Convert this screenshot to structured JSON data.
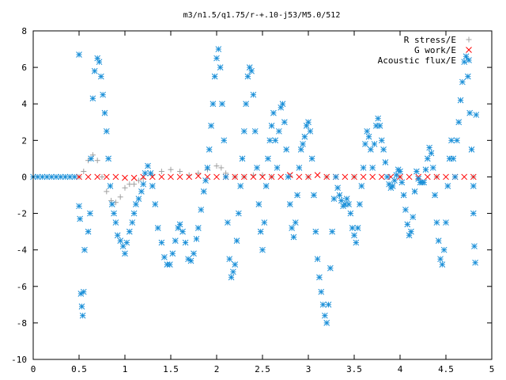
{
  "chart_data": {
    "type": "scatter",
    "title": "m3/n1.5/q1.75/r-+.10-j53/M5.0/512",
    "xlabel": "",
    "ylabel": "",
    "xlim": [
      0,
      5
    ],
    "ylim": [
      -10,
      8
    ],
    "xticks": [
      "0",
      "0.5",
      "1",
      "1.5",
      "2",
      "2.5",
      "3",
      "3.5",
      "4",
      "4.5",
      "5"
    ],
    "yticks": [
      "8",
      "6",
      "4",
      "2",
      "0",
      "-2",
      "-4",
      "-6",
      "-8",
      "-10"
    ],
    "grid": false,
    "legend_position": "top-right",
    "series": [
      {
        "name": "R stress/E",
        "marker": "plus",
        "color": "#a0a0a0",
        "points": [
          [
            0.5,
            0.0
          ],
          [
            0.55,
            0.3
          ],
          [
            0.6,
            0.9
          ],
          [
            0.65,
            1.2
          ],
          [
            0.7,
            0.9
          ],
          [
            0.75,
            0.0
          ],
          [
            0.8,
            -0.8
          ],
          [
            0.85,
            -1.3
          ],
          [
            0.9,
            -1.4
          ],
          [
            0.95,
            -1.1
          ],
          [
            1.0,
            -0.6
          ],
          [
            1.05,
            -0.4
          ],
          [
            1.1,
            -0.4
          ],
          [
            1.15,
            -0.2
          ],
          [
            1.2,
            -0.1
          ],
          [
            1.3,
            0.1
          ],
          [
            1.4,
            0.3
          ],
          [
            1.5,
            0.4
          ],
          [
            1.6,
            0.3
          ],
          [
            1.7,
            0.1
          ],
          [
            1.8,
            0.2
          ],
          [
            1.9,
            0.4
          ],
          [
            2.0,
            0.6
          ],
          [
            2.05,
            0.5
          ],
          [
            2.1,
            0.2
          ],
          [
            2.2,
            0.0
          ],
          [
            2.3,
            0.0
          ],
          [
            2.4,
            0.1
          ],
          [
            2.5,
            0.1
          ],
          [
            2.6,
            0.0
          ],
          [
            2.8,
            0.05
          ],
          [
            3.0,
            0.0
          ],
          [
            3.2,
            0.0
          ],
          [
            3.5,
            0.0
          ],
          [
            4.0,
            0.0
          ],
          [
            4.4,
            0.0
          ],
          [
            4.8,
            0.0
          ]
        ]
      },
      {
        "name": "G work/E",
        "marker": "cross",
        "color": "#ff0000",
        "points": [
          [
            0.5,
            0.0
          ],
          [
            0.6,
            0.0
          ],
          [
            0.7,
            0.0
          ],
          [
            0.8,
            0.0
          ],
          [
            0.9,
            0.0
          ],
          [
            1.0,
            -0.05
          ],
          [
            1.1,
            -0.05
          ],
          [
            1.2,
            0.0
          ],
          [
            1.3,
            0.0
          ],
          [
            1.4,
            0.0
          ],
          [
            1.5,
            0.0
          ],
          [
            1.6,
            0.0
          ],
          [
            1.7,
            0.0
          ],
          [
            1.8,
            0.05
          ],
          [
            1.9,
            0.0
          ],
          [
            2.0,
            0.0
          ],
          [
            2.1,
            0.0
          ],
          [
            2.2,
            0.0
          ],
          [
            2.3,
            0.0
          ],
          [
            2.4,
            0.0
          ],
          [
            2.5,
            0.0
          ],
          [
            2.6,
            0.0
          ],
          [
            2.7,
            0.0
          ],
          [
            2.8,
            0.1
          ],
          [
            2.9,
            0.0
          ],
          [
            3.0,
            0.0
          ],
          [
            3.1,
            0.1
          ],
          [
            3.2,
            0.0
          ],
          [
            3.3,
            0.0
          ],
          [
            3.4,
            0.0
          ],
          [
            3.5,
            0.0
          ],
          [
            3.6,
            0.0
          ],
          [
            3.7,
            0.0
          ],
          [
            3.8,
            0.0
          ],
          [
            3.9,
            0.0
          ],
          [
            4.0,
            0.0
          ],
          [
            4.1,
            0.0
          ],
          [
            4.2,
            0.0
          ],
          [
            4.3,
            0.0
          ],
          [
            4.4,
            0.0
          ],
          [
            4.5,
            0.0
          ],
          [
            4.6,
            0.0
          ],
          [
            4.7,
            0.0
          ],
          [
            4.8,
            0.0
          ]
        ]
      },
      {
        "name": "Acoustic flux/E",
        "marker": "star",
        "color": "#1a8fd8",
        "points": [
          [
            0.0,
            0.0
          ],
          [
            0.05,
            0.0
          ],
          [
            0.1,
            0.0
          ],
          [
            0.15,
            0.0
          ],
          [
            0.2,
            0.0
          ],
          [
            0.25,
            0.0
          ],
          [
            0.3,
            0.0
          ],
          [
            0.35,
            0.0
          ],
          [
            0.4,
            0.0
          ],
          [
            0.45,
            0.0
          ],
          [
            0.5,
            6.7
          ],
          [
            0.5,
            -1.6
          ],
          [
            0.51,
            -2.3
          ],
          [
            0.52,
            -6.4
          ],
          [
            0.53,
            -7.1
          ],
          [
            0.54,
            -7.6
          ],
          [
            0.55,
            -6.3
          ],
          [
            0.56,
            -4.0
          ],
          [
            0.6,
            -3.0
          ],
          [
            0.62,
            -2.0
          ],
          [
            0.63,
            1.0
          ],
          [
            0.65,
            4.3
          ],
          [
            0.67,
            5.8
          ],
          [
            0.7,
            6.5
          ],
          [
            0.72,
            6.3
          ],
          [
            0.74,
            5.5
          ],
          [
            0.76,
            4.5
          ],
          [
            0.78,
            3.5
          ],
          [
            0.8,
            2.5
          ],
          [
            0.82,
            1.0
          ],
          [
            0.84,
            -0.5
          ],
          [
            0.86,
            -1.5
          ],
          [
            0.88,
            -2.0
          ],
          [
            0.9,
            -2.5
          ],
          [
            0.92,
            -3.2
          ],
          [
            0.95,
            -3.5
          ],
          [
            0.98,
            -3.8
          ],
          [
            1.0,
            -4.2
          ],
          [
            1.02,
            -3.6
          ],
          [
            1.05,
            -3.0
          ],
          [
            1.08,
            -2.5
          ],
          [
            1.1,
            -2.0
          ],
          [
            1.12,
            -1.5
          ],
          [
            1.15,
            -1.2
          ],
          [
            1.18,
            -0.8
          ],
          [
            1.2,
            -0.4
          ],
          [
            1.22,
            0.2
          ],
          [
            1.25,
            0.6
          ],
          [
            1.28,
            0.2
          ],
          [
            1.3,
            -0.5
          ],
          [
            1.33,
            -1.5
          ],
          [
            1.36,
            -2.8
          ],
          [
            1.4,
            -3.6
          ],
          [
            1.43,
            -4.4
          ],
          [
            1.46,
            -4.8
          ],
          [
            1.49,
            -4.8
          ],
          [
            1.52,
            -4.2
          ],
          [
            1.55,
            -3.5
          ],
          [
            1.58,
            -2.8
          ],
          [
            1.6,
            -2.6
          ],
          [
            1.63,
            -3.0
          ],
          [
            1.66,
            -3.6
          ],
          [
            1.69,
            -4.5
          ],
          [
            1.72,
            -4.6
          ],
          [
            1.75,
            -4.2
          ],
          [
            1.78,
            -3.4
          ],
          [
            1.8,
            -2.8
          ],
          [
            1.83,
            -1.8
          ],
          [
            1.86,
            -0.8
          ],
          [
            1.88,
            -0.2
          ],
          [
            1.9,
            0.5
          ],
          [
            1.92,
            1.5
          ],
          [
            1.94,
            2.8
          ],
          [
            1.96,
            4.0
          ],
          [
            1.98,
            5.5
          ],
          [
            2.0,
            6.5
          ],
          [
            2.02,
            7.0
          ],
          [
            2.04,
            6.0
          ],
          [
            2.06,
            4.0
          ],
          [
            2.08,
            2.0
          ],
          [
            2.1,
            0.0
          ],
          [
            2.12,
            -2.5
          ],
          [
            2.14,
            -4.5
          ],
          [
            2.16,
            -5.5
          ],
          [
            2.18,
            -5.2
          ],
          [
            2.2,
            -4.8
          ],
          [
            2.22,
            -3.5
          ],
          [
            2.24,
            -2.0
          ],
          [
            2.26,
            -0.5
          ],
          [
            2.28,
            1.0
          ],
          [
            2.3,
            2.5
          ],
          [
            2.32,
            4.0
          ],
          [
            2.34,
            5.5
          ],
          [
            2.36,
            6.0
          ],
          [
            2.38,
            5.8
          ],
          [
            2.4,
            4.5
          ],
          [
            2.42,
            2.5
          ],
          [
            2.44,
            0.5
          ],
          [
            2.46,
            -1.5
          ],
          [
            2.48,
            -3.0
          ],
          [
            2.5,
            -4.0
          ],
          [
            2.52,
            -2.5
          ],
          [
            2.54,
            -0.5
          ],
          [
            2.56,
            1.0
          ],
          [
            2.58,
            2.0
          ],
          [
            2.6,
            2.8
          ],
          [
            2.62,
            3.5
          ],
          [
            2.64,
            2.0
          ],
          [
            2.66,
            0.5
          ],
          [
            2.68,
            2.5
          ],
          [
            2.7,
            3.8
          ],
          [
            2.72,
            4.0
          ],
          [
            2.74,
            3.0
          ],
          [
            2.76,
            1.5
          ],
          [
            2.78,
            0.0
          ],
          [
            2.8,
            -1.5
          ],
          [
            2.82,
            -2.8
          ],
          [
            2.84,
            -3.3
          ],
          [
            2.86,
            -2.5
          ],
          [
            2.88,
            -1.0
          ],
          [
            2.9,
            0.5
          ],
          [
            2.92,
            1.5
          ],
          [
            2.94,
            1.8
          ],
          [
            2.96,
            2.2
          ],
          [
            2.98,
            2.8
          ],
          [
            3.0,
            3.0
          ],
          [
            3.02,
            2.5
          ],
          [
            3.04,
            1.0
          ],
          [
            3.06,
            -1.0
          ],
          [
            3.08,
            -3.0
          ],
          [
            3.1,
            -4.5
          ],
          [
            3.12,
            -5.5
          ],
          [
            3.14,
            -6.3
          ],
          [
            3.16,
            -7.0
          ],
          [
            3.18,
            -7.6
          ],
          [
            3.2,
            -8.0
          ],
          [
            3.22,
            -7.0
          ],
          [
            3.24,
            -5.0
          ],
          [
            3.26,
            -3.0
          ],
          [
            3.28,
            -1.2
          ],
          [
            3.3,
            0.0
          ],
          [
            3.32,
            -0.6
          ],
          [
            3.34,
            -1.0
          ],
          [
            3.36,
            -1.3
          ],
          [
            3.38,
            -1.6
          ],
          [
            3.4,
            -1.5
          ],
          [
            3.42,
            -1.2
          ],
          [
            3.44,
            -1.5
          ],
          [
            3.46,
            -2.0
          ],
          [
            3.48,
            -2.8
          ],
          [
            3.5,
            -3.2
          ],
          [
            3.52,
            -3.6
          ],
          [
            3.54,
            -2.8
          ],
          [
            3.56,
            -1.5
          ],
          [
            3.58,
            -0.5
          ],
          [
            3.6,
            0.5
          ],
          [
            3.62,
            1.8
          ],
          [
            3.64,
            2.5
          ],
          [
            3.66,
            2.2
          ],
          [
            3.68,
            1.5
          ],
          [
            3.7,
            0.5
          ],
          [
            3.72,
            1.8
          ],
          [
            3.74,
            2.8
          ],
          [
            3.76,
            3.2
          ],
          [
            3.78,
            2.8
          ],
          [
            3.8,
            2.0
          ],
          [
            3.82,
            1.5
          ],
          [
            3.84,
            0.8
          ],
          [
            3.86,
            0.0
          ],
          [
            3.88,
            -0.4
          ],
          [
            3.9,
            -0.6
          ],
          [
            3.92,
            -0.5
          ],
          [
            3.94,
            -0.2
          ],
          [
            3.96,
            0.1
          ],
          [
            3.98,
            0.4
          ],
          [
            4.0,
            0.3
          ],
          [
            4.02,
            -0.3
          ],
          [
            4.04,
            -1.0
          ],
          [
            4.06,
            -1.8
          ],
          [
            4.08,
            -2.6
          ],
          [
            4.1,
            -3.2
          ],
          [
            4.12,
            -3.0
          ],
          [
            4.14,
            -2.2
          ],
          [
            4.16,
            -0.8
          ],
          [
            4.18,
            0.3
          ],
          [
            4.2,
            -0.1
          ],
          [
            4.22,
            -0.3
          ],
          [
            4.24,
            -0.3
          ],
          [
            4.26,
            -0.3
          ],
          [
            4.28,
            0.4
          ],
          [
            4.3,
            1.0
          ],
          [
            4.32,
            1.6
          ],
          [
            4.34,
            1.3
          ],
          [
            4.36,
            0.5
          ],
          [
            4.38,
            -1.0
          ],
          [
            4.4,
            -2.5
          ],
          [
            4.42,
            -3.5
          ],
          [
            4.44,
            -4.5
          ],
          [
            4.46,
            -4.8
          ],
          [
            4.48,
            -4.0
          ],
          [
            4.5,
            -2.5
          ],
          [
            4.52,
            -0.5
          ],
          [
            4.54,
            1.0
          ],
          [
            4.56,
            2.0
          ],
          [
            4.58,
            1.0
          ],
          [
            4.6,
            0.0
          ],
          [
            4.62,
            2.0
          ],
          [
            4.64,
            3.0
          ],
          [
            4.66,
            4.2
          ],
          [
            4.68,
            5.2
          ],
          [
            4.7,
            6.3
          ],
          [
            4.72,
            6.6
          ],
          [
            4.74,
            5.5
          ],
          [
            4.76,
            3.5
          ],
          [
            4.78,
            1.5
          ],
          [
            4.8,
            -0.5
          ],
          [
            4.8,
            -2.0
          ],
          [
            4.81,
            -3.8
          ],
          [
            4.82,
            -4.7
          ],
          [
            4.83,
            3.4
          ]
        ]
      }
    ]
  }
}
